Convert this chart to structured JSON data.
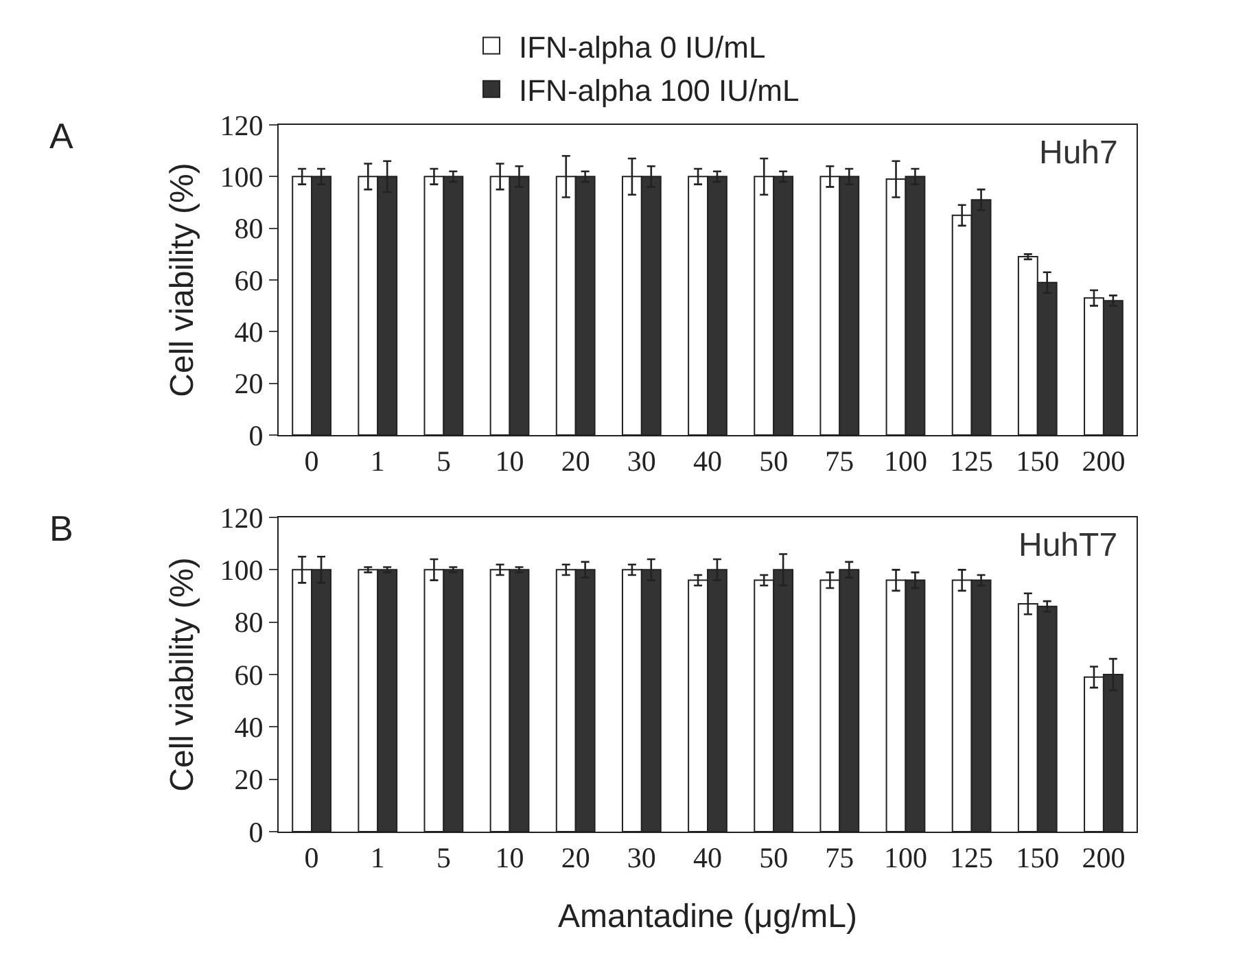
{
  "chart_data": [
    {
      "type": "bar",
      "title": "A",
      "ylabel": "Cell viability (%)",
      "annotations": [
        "Huh7"
      ],
      "legend": "top",
      "categories": [
        "0",
        "1",
        "5",
        "10",
        "20",
        "30",
        "40",
        "50",
        "75",
        "100",
        "125",
        "150",
        "200"
      ],
      "ylim": [
        0,
        120
      ],
      "yticks": [
        0,
        20,
        40,
        60,
        80,
        100,
        120
      ],
      "series": [
        {
          "name": "IFN-alpha 0 IU/mL",
          "color": "#ffffff",
          "values": [
            100,
            100,
            100,
            100,
            100,
            100,
            100,
            100,
            100,
            99,
            85,
            69,
            53
          ],
          "errors": [
            3,
            5,
            3,
            5,
            8,
            7,
            3,
            7,
            4,
            7,
            4,
            1,
            3
          ]
        },
        {
          "name": "IFN-alpha 100 IU/mL",
          "color": "#333333",
          "values": [
            100,
            100,
            100,
            100,
            100,
            100,
            100,
            100,
            100,
            100,
            91,
            59,
            52
          ],
          "errors": [
            3,
            6,
            2,
            4,
            2,
            4,
            2,
            2,
            3,
            3,
            4,
            4,
            2
          ]
        }
      ]
    },
    {
      "type": "bar",
      "title": "B",
      "ylabel": "Cell viability (%)",
      "xlabel": "Amantadine (μg/mL)",
      "annotations": [
        "HuhT7"
      ],
      "categories": [
        "0",
        "1",
        "5",
        "10",
        "20",
        "30",
        "40",
        "50",
        "75",
        "100",
        "125",
        "150",
        "200"
      ],
      "ylim": [
        0,
        120
      ],
      "yticks": [
        0,
        20,
        40,
        60,
        80,
        100,
        120
      ],
      "series": [
        {
          "color": "#ffffff",
          "values": [
            100,
            100,
            100,
            100,
            100,
            100,
            96,
            96,
            96,
            96,
            96,
            87,
            59
          ],
          "errors": [
            5,
            1,
            4,
            2,
            2,
            2,
            2,
            2,
            3,
            4,
            4,
            4,
            4
          ]
        },
        {
          "color": "#333333",
          "values": [
            100,
            100,
            100,
            100,
            100,
            100,
            100,
            100,
            100,
            96,
            96,
            86,
            60
          ],
          "errors": [
            5,
            1,
            1,
            1,
            3,
            4,
            4,
            6,
            3,
            3,
            2,
            2,
            6
          ]
        }
      ]
    }
  ]
}
